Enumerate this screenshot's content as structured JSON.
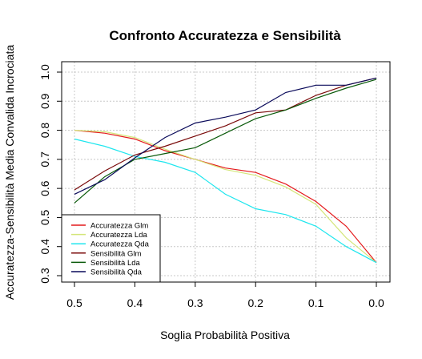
{
  "chart_data": {
    "type": "line",
    "title": "Confronto Accuratezza e Sensibilità",
    "xlabel": "Soglia Probabilità Positiva",
    "ylabel": "Accuratezza-Sensibilità Media Convalida Incrociata",
    "xlim": [
      0.5,
      0.0
    ],
    "ylim": [
      0.3,
      1.0
    ],
    "x_ticks": [
      0.5,
      0.4,
      0.3,
      0.2,
      0.1,
      0.0
    ],
    "x_tick_labels": [
      "0.5",
      "0.4",
      "0.3",
      "0.2",
      "0.1",
      "0.0"
    ],
    "y_ticks": [
      0.3,
      0.4,
      0.5,
      0.6,
      0.7,
      0.8,
      0.9,
      1.0
    ],
    "y_tick_labels": [
      "0.3",
      "0.4",
      "0.5",
      "0.6",
      "0.7",
      "0.8",
      "0.9",
      "1.0"
    ],
    "grid": true,
    "legend_position": "bottom-left",
    "x": [
      0.5,
      0.45,
      0.4,
      0.35,
      0.3,
      0.25,
      0.2,
      0.15,
      0.1,
      0.05,
      0.0
    ],
    "series": [
      {
        "name": "Accuratezza Glm",
        "color": "#e41a1c",
        "values": [
          0.8,
          0.79,
          0.77,
          0.73,
          0.7,
          0.67,
          0.655,
          0.615,
          0.555,
          0.47,
          0.345
        ]
      },
      {
        "name": "Accuratezza Lda",
        "color": "#d4e67a",
        "values": [
          0.8,
          0.795,
          0.775,
          0.735,
          0.7,
          0.665,
          0.645,
          0.605,
          0.545,
          0.43,
          0.345
        ]
      },
      {
        "name": "Accuratezza Qda",
        "color": "#1ee6ee",
        "values": [
          0.77,
          0.745,
          0.71,
          0.69,
          0.655,
          0.58,
          0.53,
          0.51,
          0.47,
          0.4,
          0.345
        ]
      },
      {
        "name": "Sensibilità Glm",
        "color": "#7a0a0a",
        "values": [
          0.595,
          0.66,
          0.715,
          0.745,
          0.78,
          0.815,
          0.86,
          0.87,
          0.92,
          0.955,
          0.98
        ]
      },
      {
        "name": "Sensibilità Lda",
        "color": "#0a5a0a",
        "values": [
          0.55,
          0.64,
          0.7,
          0.72,
          0.74,
          0.79,
          0.84,
          0.87,
          0.91,
          0.945,
          0.975
        ]
      },
      {
        "name": "Sensibilità Qda",
        "color": "#0a0a5a",
        "values": [
          0.58,
          0.63,
          0.705,
          0.775,
          0.825,
          0.845,
          0.87,
          0.93,
          0.955,
          0.955,
          0.98
        ]
      }
    ]
  }
}
